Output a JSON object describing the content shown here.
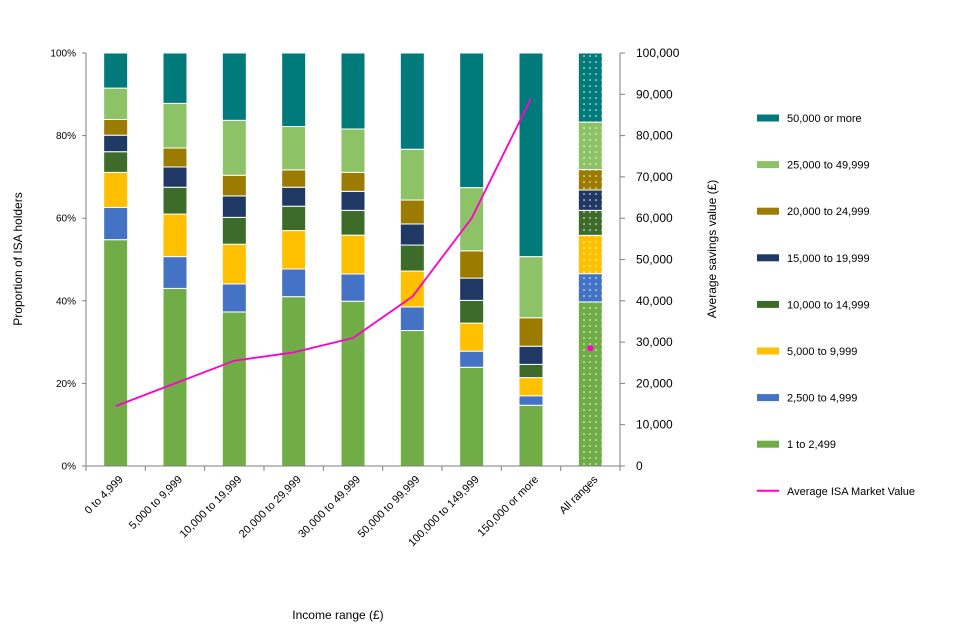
{
  "chart_data": {
    "type": "bar",
    "stacked": true,
    "xlabel": "Income range (£)",
    "ylabel": "Proportion of ISA holders",
    "y2label": "Average savings value (£)",
    "ylim": [
      0,
      100
    ],
    "y2lim": [
      0,
      100000
    ],
    "yticks": [
      "0%",
      "20%",
      "40%",
      "60%",
      "80%",
      "100%"
    ],
    "y2ticks": [
      "0",
      "10,000",
      "20,000",
      "30,000",
      "40,000",
      "50,000",
      "60,000",
      "70,000",
      "80,000",
      "90,000",
      "100,000"
    ],
    "categories": [
      "0 to 4,999",
      "5,000 to 9,999",
      "10,000 to 19,999",
      "20,000 to 29,999",
      "30,000 to 49,999",
      "50,000 to 99,999",
      "100,000 to 149,999",
      "150,000 or more",
      "All ranges"
    ],
    "legend_position": "right",
    "series": [
      {
        "name": "1 to 2,499",
        "color": "#70ad47",
        "values": [
          54.8,
          43.0,
          37.3,
          41.0,
          39.9,
          32.8,
          23.9,
          14.7,
          39.4
        ]
      },
      {
        "name": "2,500 to 4,999",
        "color": "#4472c4",
        "values": [
          7.8,
          7.7,
          6.8,
          6.7,
          6.6,
          5.7,
          3.9,
          2.3,
          6.8
        ]
      },
      {
        "name": "5,000 to 9,999",
        "color": "#ffc000",
        "values": [
          8.5,
          10.3,
          9.6,
          9.3,
          9.4,
          8.7,
          6.8,
          4.4,
          9.2
        ]
      },
      {
        "name": "10,000 to 14,999",
        "color": "#3d6b2a",
        "values": [
          5.0,
          6.5,
          6.5,
          5.9,
          6.0,
          6.3,
          5.5,
          3.2,
          6.0
        ]
      },
      {
        "name": "15,000 to 19,999",
        "color": "#203864",
        "values": [
          4.0,
          4.9,
          5.2,
          4.6,
          4.6,
          5.1,
          5.4,
          4.4,
          4.9
        ]
      },
      {
        "name": "20,000 to 24,999",
        "color": "#9c7c00",
        "values": [
          3.8,
          4.6,
          5.0,
          4.2,
          4.6,
          5.8,
          6.6,
          6.9,
          4.9
        ]
      },
      {
        "name": "25,000 to 49,999",
        "color": "#8ec267",
        "values": [
          7.6,
          10.8,
          13.3,
          10.5,
          10.5,
          12.3,
          15.3,
          14.8,
          11.4
        ]
      },
      {
        "name": "50,000 or more",
        "color": "#007a7a",
        "values": [
          8.5,
          12.2,
          16.3,
          17.8,
          18.4,
          23.3,
          32.6,
          49.3,
          16.6
        ]
      }
    ],
    "line_series": {
      "name": "Average ISA Market Value",
      "color": "#ff00cc",
      "axis": "right",
      "values": [
        14500,
        20000,
        25500,
        27500,
        31000,
        41000,
        60000,
        89000,
        28500
      ],
      "line_categories": 8
    }
  }
}
